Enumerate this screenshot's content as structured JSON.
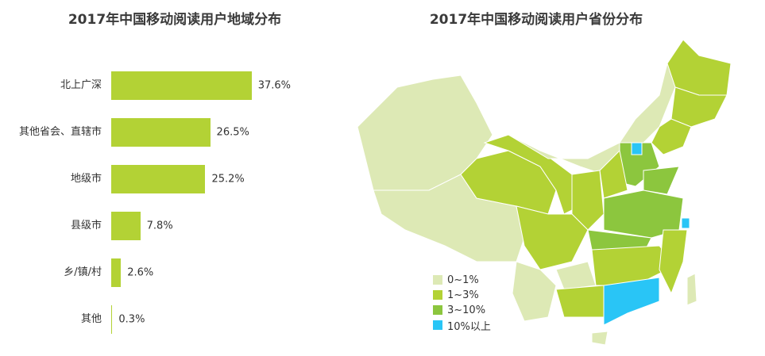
{
  "chart_data": [
    {
      "type": "bar",
      "title": "2017年中国移动阅读用户地域分布",
      "categories": [
        "北上广深",
        "其他省会、直辖市",
        "地级市",
        "县级市",
        "乡/镇/村",
        "其他"
      ],
      "values": [
        37.6,
        26.5,
        25.2,
        7.8,
        2.6,
        0.3
      ],
      "value_labels": [
        "37.6%",
        "26.5%",
        "25.2%",
        "7.8%",
        "2.6%",
        "0.3%"
      ],
      "color": "#b3d235"
    },
    {
      "type": "map",
      "title": "2017年中国移动阅读用户省份分布",
      "legend": [
        {
          "label": "0~1%",
          "color": "#dde9b5"
        },
        {
          "label": "1~3%",
          "color": "#b3d235"
        },
        {
          "label": "3~10%",
          "color": "#8cc63e"
        },
        {
          "label": "10%以上",
          "color": "#29c5f6"
        }
      ]
    }
  ]
}
